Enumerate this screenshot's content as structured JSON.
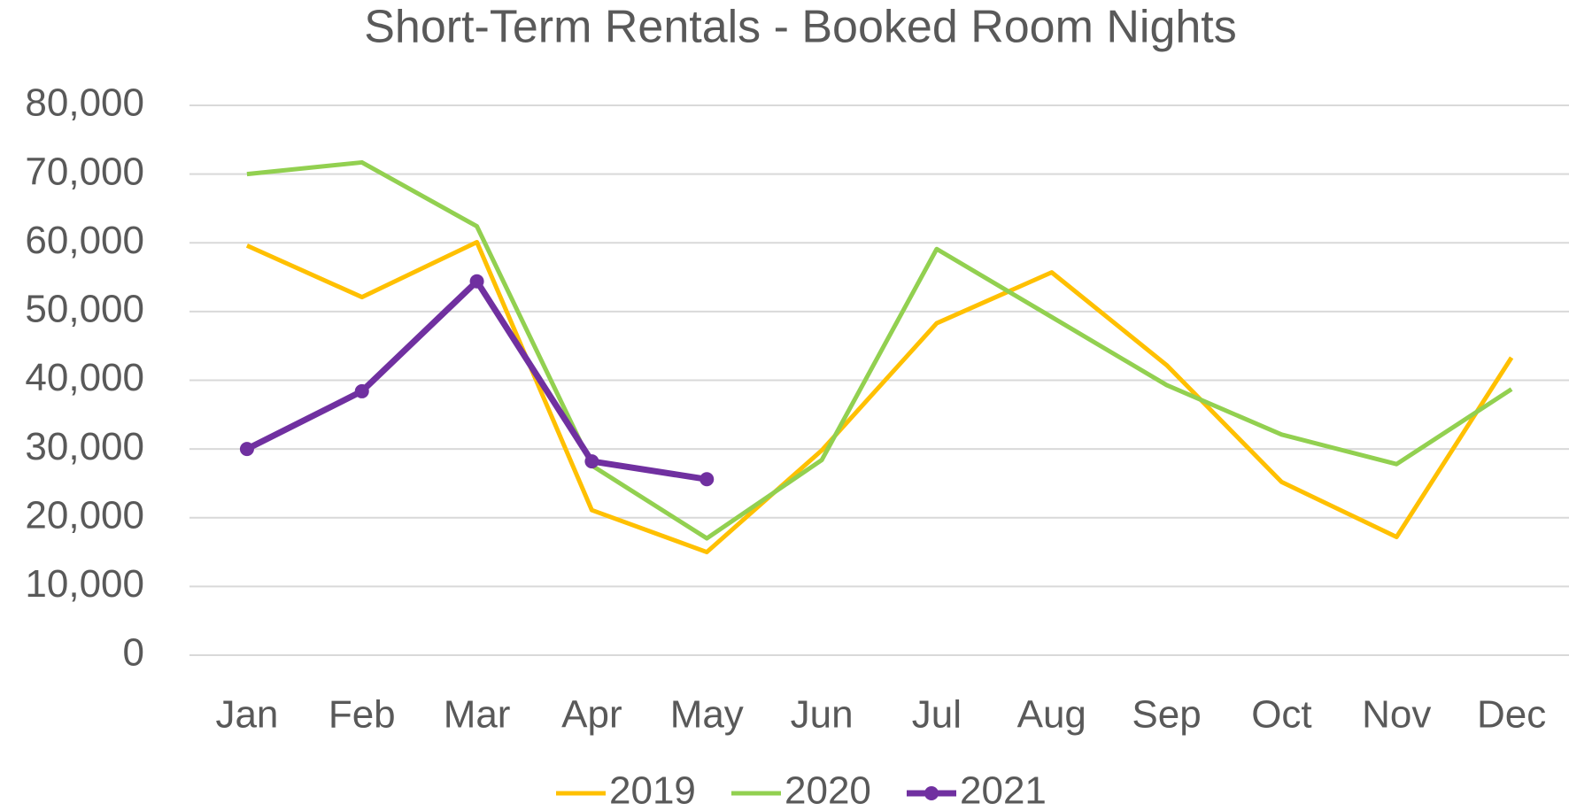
{
  "chart_data": {
    "type": "line",
    "title": "Short-Term Rentals - Booked Room Nights",
    "categories": [
      "Jan",
      "Feb",
      "Mar",
      "Apr",
      "May",
      "Jun",
      "Jul",
      "Aug",
      "Sep",
      "Oct",
      "Nov",
      "Dec"
    ],
    "series": [
      {
        "name": "2019",
        "color": "#ffc000",
        "values": [
          59600,
          52100,
          60100,
          21100,
          15000,
          29800,
          48300,
          55700,
          42200,
          25200,
          17200,
          43300
        ]
      },
      {
        "name": "2020",
        "color": "#92d050",
        "values": [
          70000,
          71700,
          62400,
          27600,
          17000,
          28400,
          59100,
          49200,
          39300,
          32100,
          27800,
          38700
        ]
      },
      {
        "name": "2021",
        "color": "#7030a0",
        "markers": true,
        "values": [
          30000,
          38400,
          54400,
          28200,
          25600,
          null,
          null,
          null,
          null,
          null,
          null,
          null
        ]
      }
    ],
    "ylim": [
      0,
      80000
    ],
    "yticks": [
      0,
      {
        "value": 10000,
        "label": "10,000"
      },
      {
        "value": 20000,
        "label": "20,000"
      },
      {
        "value": 30000,
        "label": "30,000"
      },
      {
        "value": 40000,
        "label": "40,000"
      },
      {
        "value": 50000,
        "label": "50,000"
      },
      {
        "value": 60000,
        "label": "60,000"
      },
      {
        "value": 70000,
        "label": "70,000"
      },
      {
        "value": 80000,
        "label": "80,000"
      }
    ],
    "grid": true,
    "legend": "bottom"
  }
}
